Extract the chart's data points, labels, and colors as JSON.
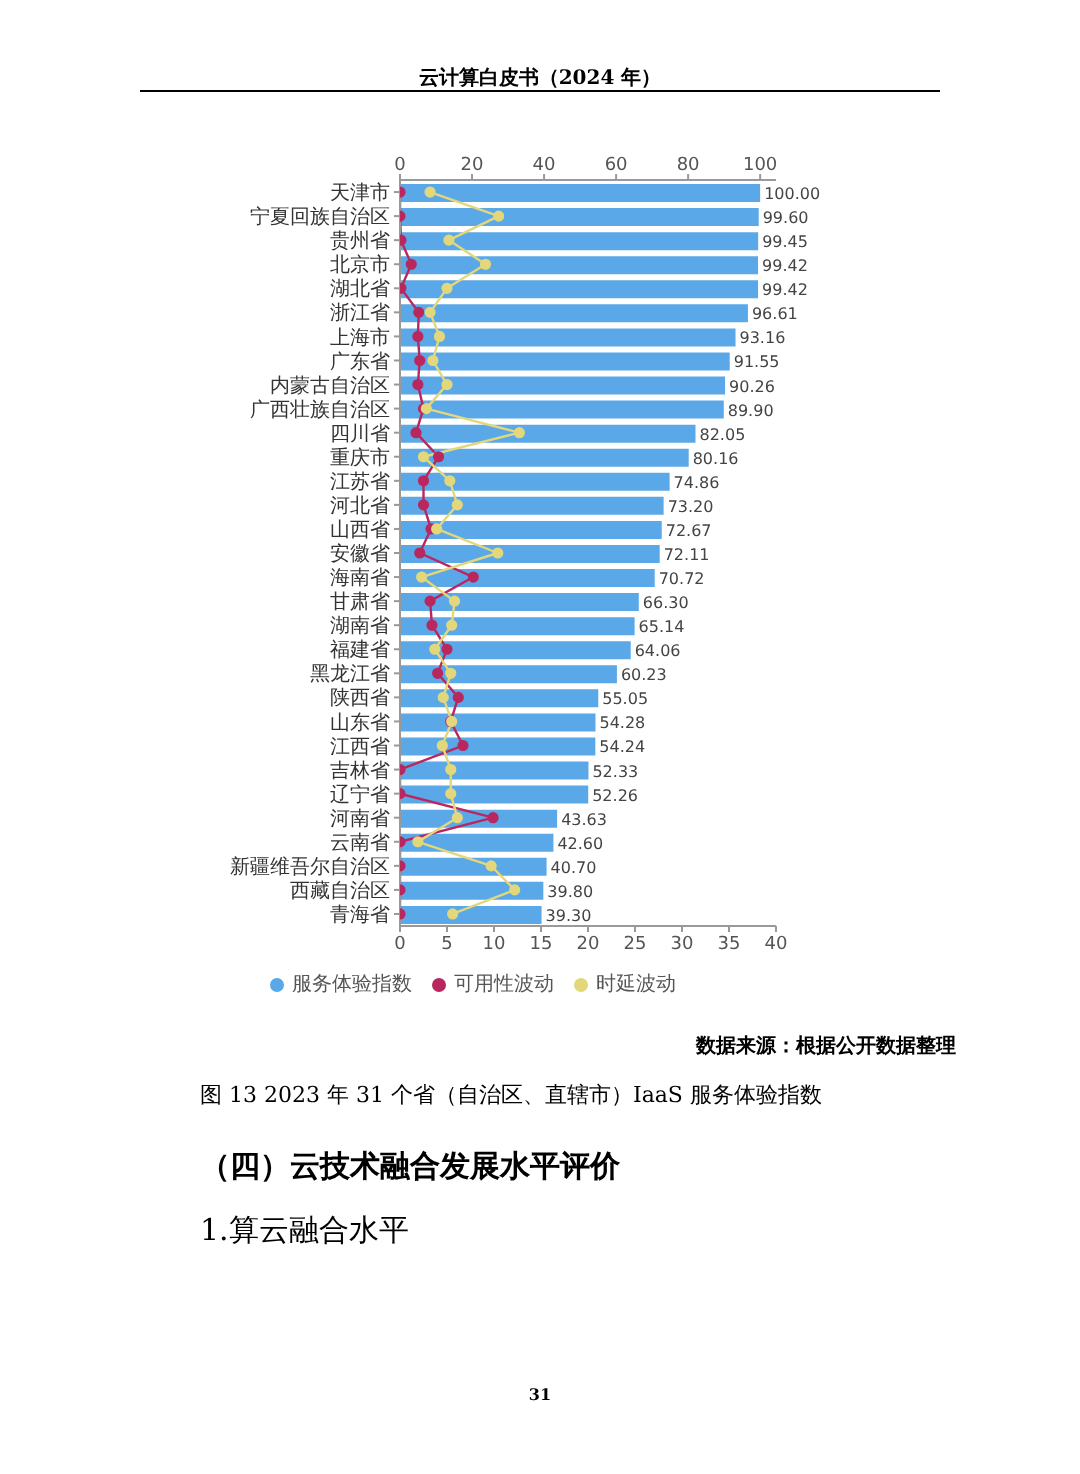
{
  "chart_data": {
    "type": "bar",
    "orientation": "horizontal",
    "title": "图 13 2023 年 31 个省（自治区、直辖市）IaaS 服务体验指数",
    "annotations": [
      "云计算白皮书（2024 年）",
      "数据来源：根据公开数据整理",
      "（四）云技术融合发展水平评价",
      "1.算云融合水平",
      "31"
    ],
    "categories": [
      "天津市",
      "宁夏回族自治区",
      "贵州省",
      "北京市",
      "湖北省",
      "浙江省",
      "上海市",
      "广东省",
      "内蒙古自治区",
      "广西壮族自治区",
      "四川省",
      "重庆市",
      "江苏省",
      "河北省",
      "山西省",
      "安徽省",
      "海南省",
      "甘肃省",
      "湖南省",
      "福建省",
      "黑龙江省",
      "陕西省",
      "山东省",
      "江西省",
      "吉林省",
      "辽宁省",
      "河南省",
      "云南省",
      "新疆维吾尔自治区",
      "西藏自治区",
      "青海省"
    ],
    "xlim": [
      0,
      40
    ],
    "xticks": [
      0,
      5,
      10,
      15,
      20,
      25,
      30,
      35,
      40
    ],
    "x2lim": [
      0,
      104.4
    ],
    "x2ticks": [
      0,
      20,
      40,
      60,
      80,
      100
    ],
    "legend": "bottom",
    "marker": "circle",
    "line_style": "solid",
    "series": [
      {
        "name": "服务体验指数",
        "axis": "x2",
        "color": "#5aa8e8",
        "values": [
          100.0,
          99.6,
          99.45,
          99.42,
          99.42,
          96.61,
          93.16,
          91.55,
          90.26,
          89.9,
          82.05,
          80.16,
          74.86,
          73.2,
          72.67,
          72.11,
          70.72,
          66.3,
          65.14,
          64.06,
          60.23,
          55.05,
          54.28,
          54.24,
          52.33,
          52.26,
          43.63,
          42.6,
          40.7,
          39.8,
          39.3
        ],
        "value_labels": [
          "100.00",
          "99.60",
          "99.45",
          "99.42",
          "99.42",
          "96.61",
          "93.16",
          "91.55",
          "90.26",
          "89.90",
          "82.05",
          "80.16",
          "74.86",
          "73.20",
          "72.67",
          "72.11",
          "70.72",
          "66.30",
          "65.14",
          "64.06",
          "60.23",
          "55.05",
          "54.28",
          "54.24",
          "52.33",
          "52.26",
          "43.63",
          "42.60",
          "40.70",
          "39.80",
          "39.30"
        ]
      },
      {
        "name": "可用性波动",
        "type": "line",
        "color": "#b8285f",
        "values": [
          0,
          0,
          0.1,
          1.2,
          0.1,
          2.0,
          1.9,
          2.1,
          1.9,
          2.5,
          1.7,
          4.1,
          2.5,
          2.5,
          3.3,
          2.1,
          7.8,
          3.2,
          3.4,
          5.0,
          4.0,
          6.2,
          5.4,
          6.7,
          0,
          0,
          9.9,
          0,
          0,
          0,
          0
        ]
      },
      {
        "name": "时延波动",
        "type": "line",
        "color": "#e3d77c",
        "values": [
          3.2,
          10.5,
          5.2,
          9.1,
          5.0,
          3.2,
          4.2,
          3.5,
          5.0,
          2.8,
          12.7,
          2.5,
          5.3,
          6.1,
          3.9,
          10.4,
          2.3,
          5.8,
          5.5,
          3.7,
          5.4,
          4.6,
          5.5,
          4.5,
          5.4,
          5.4,
          6.1,
          1.9,
          9.7,
          12.2,
          5.6
        ]
      }
    ]
  }
}
